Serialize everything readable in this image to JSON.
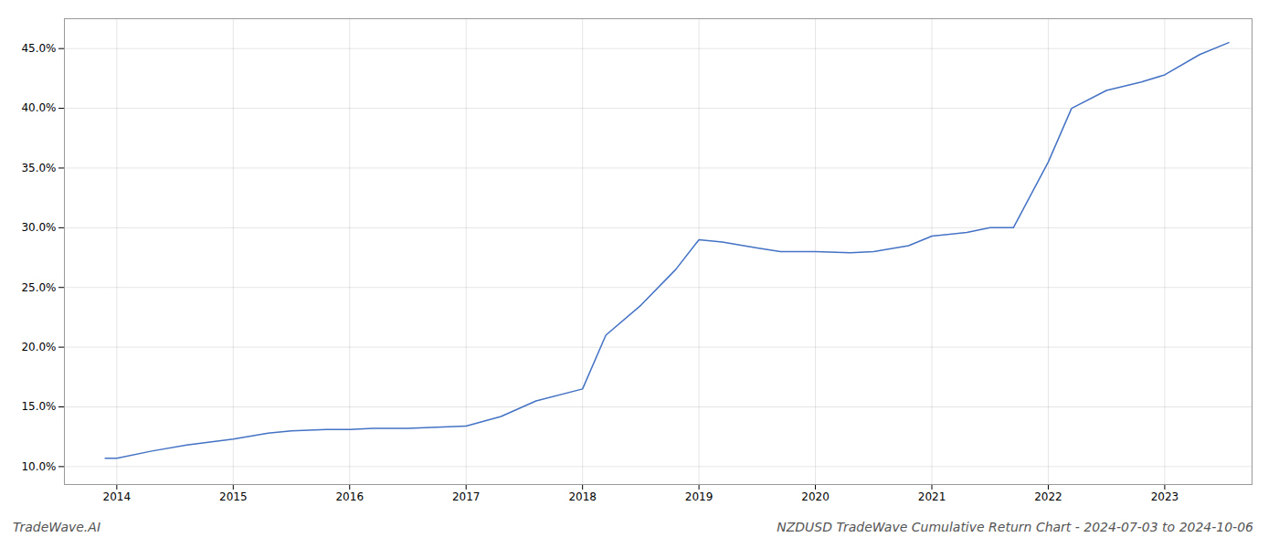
{
  "chart_data": {
    "type": "line",
    "title": "NZDUSD TradeWave Cumulative Return Chart - 2024-07-03 to 2024-10-06",
    "annotations": [
      "TradeWave.AI"
    ],
    "x": [
      2013.9,
      2014.0,
      2014.3,
      2014.6,
      2015.0,
      2015.3,
      2015.5,
      2015.8,
      2016.0,
      2016.2,
      2016.5,
      2017.0,
      2017.3,
      2017.6,
      2018.0,
      2018.2,
      2018.5,
      2018.8,
      2019.0,
      2019.2,
      2019.5,
      2019.7,
      2020.0,
      2020.3,
      2020.5,
      2020.8,
      2021.0,
      2021.3,
      2021.5,
      2021.7,
      2022.0,
      2022.2,
      2022.5,
      2022.8,
      2023.0,
      2023.3,
      2023.55
    ],
    "values": [
      10.7,
      10.7,
      11.3,
      11.8,
      12.3,
      12.8,
      13.0,
      13.1,
      13.1,
      13.2,
      13.2,
      13.4,
      14.2,
      15.5,
      16.5,
      21.0,
      23.5,
      26.5,
      29.0,
      28.8,
      28.3,
      28.0,
      28.0,
      27.9,
      28.0,
      28.5,
      29.3,
      29.6,
      30.0,
      30.0,
      35.5,
      40.0,
      41.5,
      42.2,
      42.8,
      44.5,
      45.5
    ],
    "color": "#4472c4",
    "xlim": [
      2013.55,
      2023.75
    ],
    "ylim": [
      8.5,
      47.5
    ],
    "xticks": [
      2014,
      2015,
      2016,
      2017,
      2018,
      2019,
      2020,
      2021,
      2022,
      2023
    ],
    "yticks": [
      {
        "value": 10.0,
        "label": "10.0%"
      },
      {
        "value": 15.0,
        "label": "15.0%"
      },
      {
        "value": 20.0,
        "label": "20.0%"
      },
      {
        "value": 25.0,
        "label": "25.0%"
      },
      {
        "value": 30.0,
        "label": "30.0%"
      },
      {
        "value": 35.0,
        "label": "35.0%"
      },
      {
        "value": 40.0,
        "label": "40.0%"
      },
      {
        "value": 45.0,
        "label": "45.0%"
      }
    ],
    "grid": true
  }
}
